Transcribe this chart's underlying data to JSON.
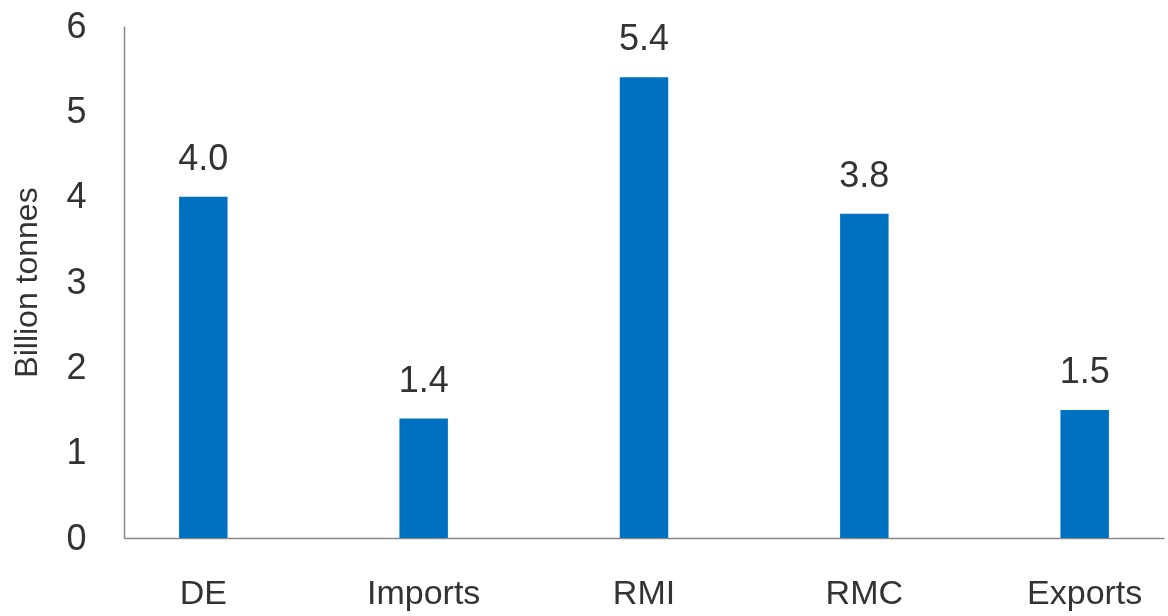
{
  "chart_data": {
    "type": "bar",
    "ylabel": "Billion tonnes",
    "categories": [
      "DE",
      "Imports",
      "RMI",
      "RMC",
      "Exports"
    ],
    "values": [
      4.0,
      1.4,
      5.4,
      3.8,
      1.5
    ],
    "value_labels": [
      "4.0",
      "1.4",
      "5.4",
      "3.8",
      "1.5"
    ],
    "color": "#0070c0",
    "ylim": [
      0,
      6
    ],
    "yticks": [
      0,
      1,
      2,
      3,
      4,
      5,
      6
    ],
    "grid": false
  }
}
